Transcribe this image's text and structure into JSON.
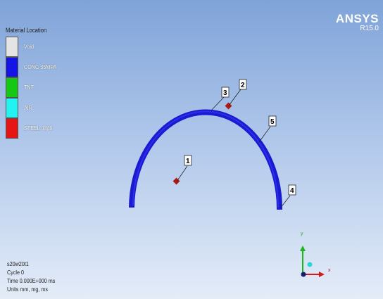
{
  "brand": {
    "name": "ANSYS",
    "version": "R15.0"
  },
  "legend": {
    "title": "Material Location",
    "items": [
      {
        "label": "Void",
        "color": "#e4e4e4"
      },
      {
        "label": "CONC 35MPA",
        "color": "#1414e6"
      },
      {
        "label": "TNT",
        "color": "#14c814"
      },
      {
        "label": "AIR",
        "color": "#22f2f2"
      },
      {
        "label": "STEEL 4340",
        "color": "#e61414"
      }
    ]
  },
  "probes": [
    {
      "id": "1"
    },
    {
      "id": "2"
    },
    {
      "id": "3"
    },
    {
      "id": "4"
    },
    {
      "id": "5"
    }
  ],
  "axis": {
    "x": "x",
    "y": "y"
  },
  "info": {
    "model": "s20w20t1",
    "cycle": "Cycle 0",
    "time": "Time 0.000E+000 ms",
    "units": "Units mm, mg, ms"
  }
}
